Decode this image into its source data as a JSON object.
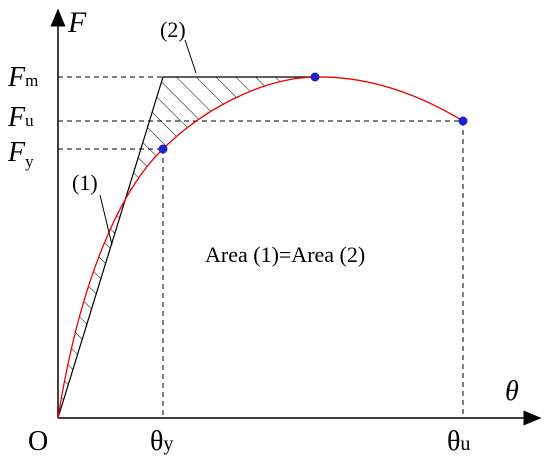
{
  "axes": {
    "y": "F",
    "x": "θ",
    "origin": "O"
  },
  "y_labels": [
    {
      "symbol": "F",
      "sub": "m"
    },
    {
      "symbol": "F",
      "sub": "u"
    },
    {
      "symbol": "F",
      "sub": "y"
    }
  ],
  "x_labels": [
    {
      "symbol": "θ",
      "sub": "y"
    },
    {
      "symbol": "θ",
      "sub": "u"
    }
  ],
  "regions": [
    "(1)",
    "(2)"
  ],
  "note": "Area (1)=Area (2)"
}
